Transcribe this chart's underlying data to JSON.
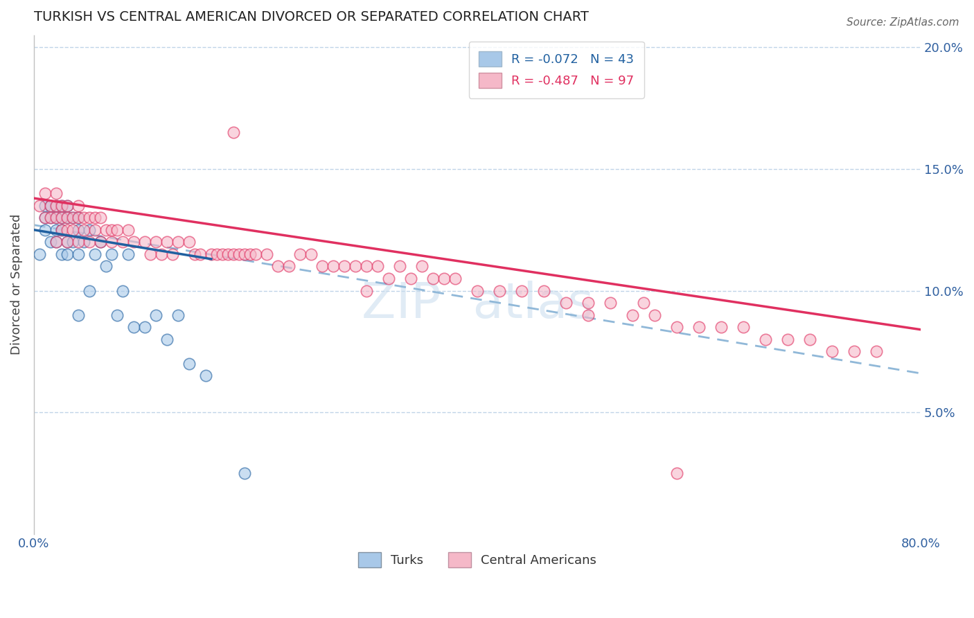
{
  "title": "TURKISH VS CENTRAL AMERICAN DIVORCED OR SEPARATED CORRELATION CHART",
  "source": "Source: ZipAtlas.com",
  "ylabel": "Divorced or Separated",
  "xlim": [
    0.0,
    0.8
  ],
  "ylim": [
    0.0,
    0.205
  ],
  "yticks_right": [
    0.05,
    0.1,
    0.15,
    0.2
  ],
  "ytick_labels_right": [
    "5.0%",
    "10.0%",
    "15.0%",
    "20.0%"
  ],
  "xtick_positions": [
    0.0,
    0.1,
    0.2,
    0.3,
    0.4,
    0.5,
    0.6,
    0.7,
    0.8
  ],
  "xtick_labels": [
    "0.0%",
    "",
    "",
    "",
    "",
    "",
    "",
    "",
    "80.0%"
  ],
  "legend_labels": [
    "R = -0.072   N = 43",
    "R = -0.487   N = 97"
  ],
  "legend_bottom": [
    "Turks",
    "Central Americans"
  ],
  "blue_scatter_color": "#a8c8e8",
  "pink_scatter_color": "#f5b8c8",
  "blue_line_color": "#2060a0",
  "pink_line_color": "#e03060",
  "dashed_line_color": "#90b8d8",
  "turks_x": [
    0.005,
    0.01,
    0.01,
    0.01,
    0.015,
    0.015,
    0.015,
    0.02,
    0.02,
    0.02,
    0.02,
    0.025,
    0.025,
    0.025,
    0.025,
    0.03,
    0.03,
    0.03,
    0.03,
    0.035,
    0.035,
    0.04,
    0.04,
    0.04,
    0.04,
    0.045,
    0.05,
    0.05,
    0.055,
    0.06,
    0.065,
    0.07,
    0.075,
    0.08,
    0.085,
    0.09,
    0.1,
    0.11,
    0.12,
    0.13,
    0.14,
    0.155,
    0.19
  ],
  "turks_y": [
    0.115,
    0.135,
    0.13,
    0.125,
    0.135,
    0.13,
    0.12,
    0.135,
    0.13,
    0.125,
    0.12,
    0.135,
    0.13,
    0.125,
    0.115,
    0.135,
    0.13,
    0.12,
    0.115,
    0.13,
    0.12,
    0.13,
    0.125,
    0.115,
    0.09,
    0.12,
    0.125,
    0.1,
    0.115,
    0.12,
    0.11,
    0.115,
    0.09,
    0.1,
    0.115,
    0.085,
    0.085,
    0.09,
    0.08,
    0.09,
    0.07,
    0.065,
    0.025
  ],
  "central_x": [
    0.005,
    0.01,
    0.01,
    0.015,
    0.015,
    0.02,
    0.02,
    0.02,
    0.02,
    0.025,
    0.025,
    0.025,
    0.03,
    0.03,
    0.03,
    0.03,
    0.035,
    0.035,
    0.04,
    0.04,
    0.04,
    0.045,
    0.045,
    0.05,
    0.05,
    0.055,
    0.055,
    0.06,
    0.06,
    0.065,
    0.07,
    0.07,
    0.075,
    0.08,
    0.085,
    0.09,
    0.1,
    0.105,
    0.11,
    0.115,
    0.12,
    0.125,
    0.13,
    0.14,
    0.145,
    0.15,
    0.16,
    0.165,
    0.17,
    0.175,
    0.18,
    0.185,
    0.19,
    0.195,
    0.2,
    0.21,
    0.22,
    0.23,
    0.24,
    0.25,
    0.26,
    0.27,
    0.28,
    0.29,
    0.3,
    0.31,
    0.32,
    0.33,
    0.34,
    0.35,
    0.36,
    0.37,
    0.38,
    0.4,
    0.42,
    0.44,
    0.46,
    0.48,
    0.5,
    0.52,
    0.54,
    0.56,
    0.58,
    0.6,
    0.62,
    0.64,
    0.66,
    0.68,
    0.7,
    0.72,
    0.74,
    0.76,
    0.5,
    0.55,
    0.18,
    0.3,
    0.58
  ],
  "central_y": [
    0.135,
    0.14,
    0.13,
    0.135,
    0.13,
    0.14,
    0.135,
    0.13,
    0.12,
    0.135,
    0.13,
    0.125,
    0.135,
    0.13,
    0.125,
    0.12,
    0.13,
    0.125,
    0.135,
    0.13,
    0.12,
    0.13,
    0.125,
    0.13,
    0.12,
    0.13,
    0.125,
    0.13,
    0.12,
    0.125,
    0.125,
    0.12,
    0.125,
    0.12,
    0.125,
    0.12,
    0.12,
    0.115,
    0.12,
    0.115,
    0.12,
    0.115,
    0.12,
    0.12,
    0.115,
    0.115,
    0.115,
    0.115,
    0.115,
    0.115,
    0.115,
    0.115,
    0.115,
    0.115,
    0.115,
    0.115,
    0.11,
    0.11,
    0.115,
    0.115,
    0.11,
    0.11,
    0.11,
    0.11,
    0.11,
    0.11,
    0.105,
    0.11,
    0.105,
    0.11,
    0.105,
    0.105,
    0.105,
    0.1,
    0.1,
    0.1,
    0.1,
    0.095,
    0.095,
    0.095,
    0.09,
    0.09,
    0.085,
    0.085,
    0.085,
    0.085,
    0.08,
    0.08,
    0.08,
    0.075,
    0.075,
    0.075,
    0.09,
    0.095,
    0.165,
    0.1,
    0.025
  ],
  "blue_trendline_x": [
    0.0,
    0.16
  ],
  "blue_trendline_y": [
    0.125,
    0.113
  ],
  "pink_trendline_x": [
    0.0,
    0.8
  ],
  "pink_trendline_y": [
    0.138,
    0.084
  ],
  "dashed_trendline_x": [
    0.0,
    0.8
  ],
  "dashed_trendline_y": [
    0.127,
    0.066
  ]
}
